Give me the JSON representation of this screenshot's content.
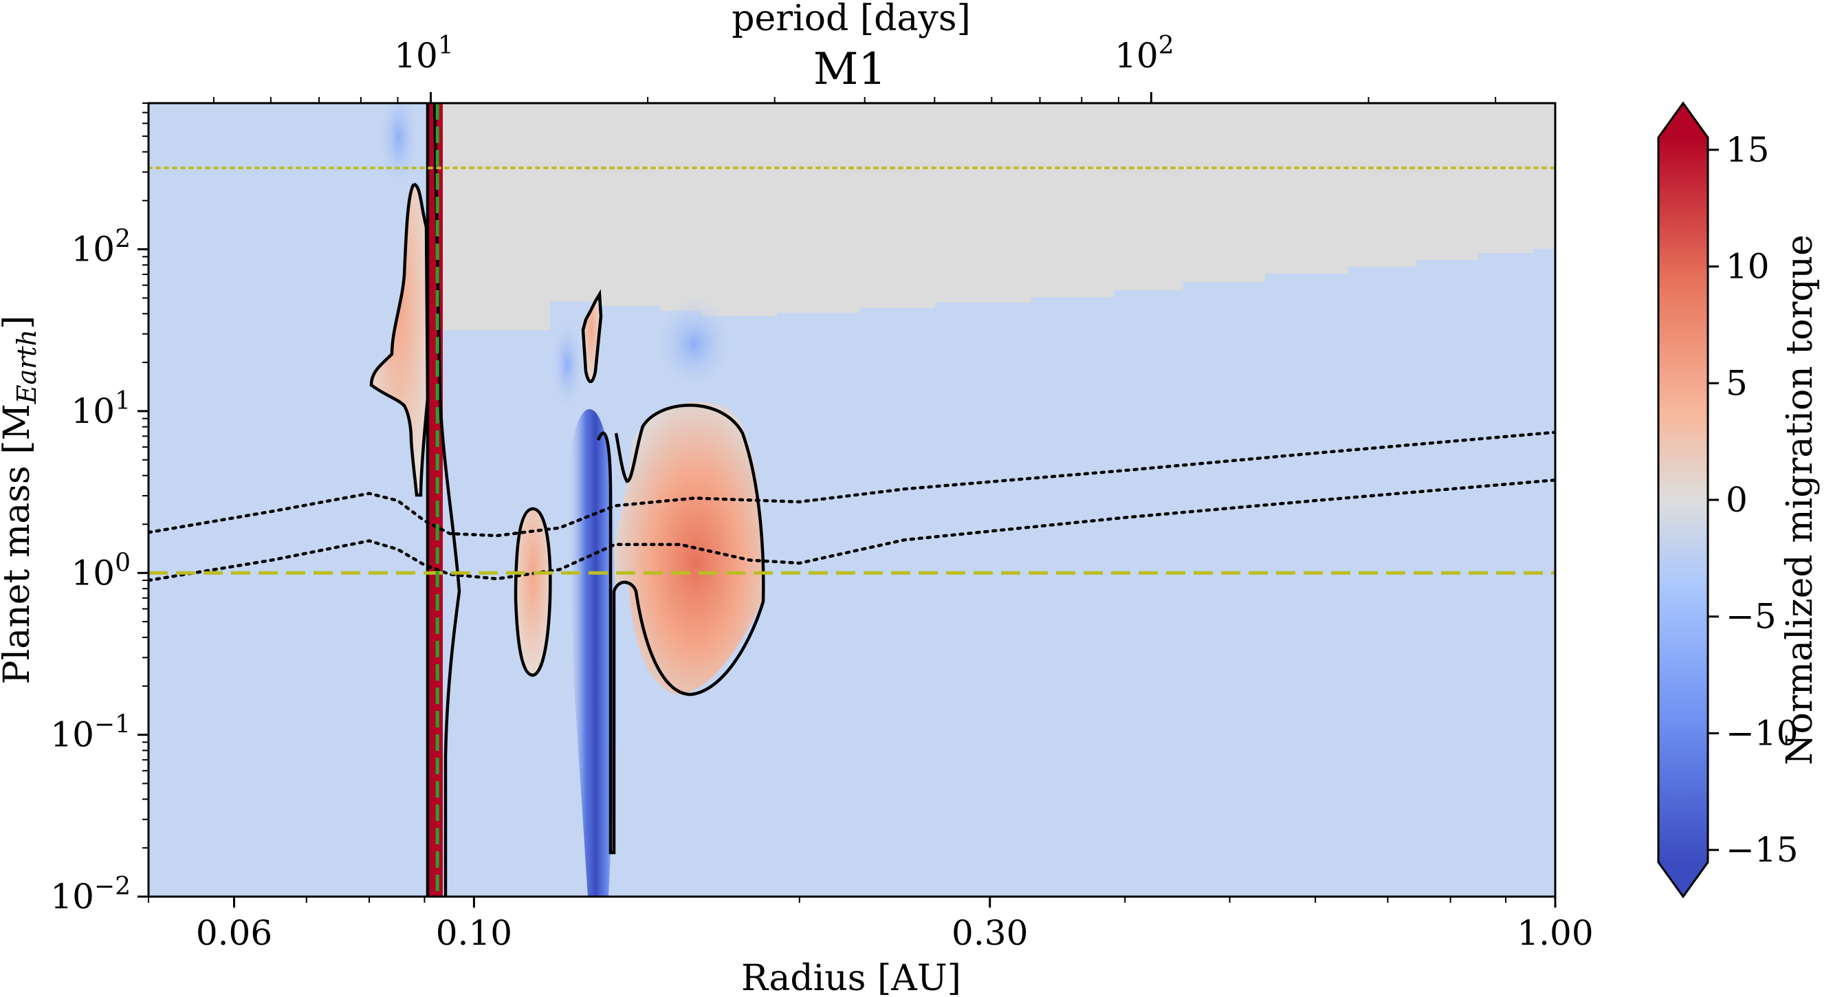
{
  "chart_data": {
    "type": "heatmap",
    "title": "M1",
    "xlabel": "Radius [AU]",
    "ylabel_main": "Planet mass [M",
    "ylabel_sub": "Earth",
    "ylabel_end": "]",
    "x2label": "period [days]",
    "colorbar_label": "Normalized migration torque",
    "xscale": "log",
    "yscale": "log",
    "xlim": [
      0.05,
      1.0
    ],
    "ylim": [
      0.01,
      800
    ],
    "x_ticks": [
      {
        "value": 0.06,
        "label": "0.06"
      },
      {
        "value": 0.1,
        "label": "0.10"
      },
      {
        "value": 0.3,
        "label": "0.30"
      },
      {
        "value": 1.0,
        "label": "1.00"
      }
    ],
    "y_ticks": [
      {
        "value": 0.01,
        "base": "10",
        "exp": "−2"
      },
      {
        "value": 0.1,
        "base": "10",
        "exp": "−1"
      },
      {
        "value": 1,
        "base": "10",
        "exp": "0"
      },
      {
        "value": 10,
        "base": "10",
        "exp": "1"
      },
      {
        "value": 100,
        "base": "10",
        "exp": "2"
      }
    ],
    "x2_ticks": [
      {
        "radius": 0.0912,
        "base": "10",
        "exp": "1"
      },
      {
        "radius": 0.423,
        "base": "10",
        "exp": "2"
      }
    ],
    "colorbar": {
      "range": [
        -17,
        17
      ],
      "ticks": [
        {
          "value": 15,
          "label": "15"
        },
        {
          "value": 10,
          "label": "10"
        },
        {
          "value": 5,
          "label": "5"
        },
        {
          "value": 0,
          "label": "0"
        },
        {
          "value": -5,
          "label": "−5"
        },
        {
          "value": -10,
          "label": "−10"
        },
        {
          "value": -15,
          "label": "−15"
        }
      ],
      "colors": [
        "#3b4cc0",
        "#6f92f3",
        "#aac7fd",
        "#dddddd",
        "#f7b89c",
        "#e7745b",
        "#b40426"
      ]
    },
    "reference_lines": [
      {
        "orientation": "horizontal",
        "value": 1.0,
        "style": "dashed",
        "color": "#bcbd22"
      },
      {
        "orientation": "horizontal",
        "value": 318,
        "style": "dotted",
        "color": "#bcbd22"
      },
      {
        "orientation": "vertical",
        "value": 0.0925,
        "style": "dashed",
        "color": "#2ca02c"
      }
    ],
    "dotted_curves": [
      {
        "name": "upper",
        "points": [
          [
            0.05,
            1.78
          ],
          [
            0.065,
            2.4
          ],
          [
            0.08,
            3.1
          ],
          [
            0.085,
            2.8
          ],
          [
            0.09,
            2.1
          ],
          [
            0.095,
            1.75
          ],
          [
            0.105,
            1.7
          ],
          [
            0.12,
            1.9
          ],
          [
            0.135,
            2.6
          ],
          [
            0.16,
            2.9
          ],
          [
            0.2,
            2.75
          ],
          [
            0.25,
            3.3
          ],
          [
            0.4,
            4.3
          ],
          [
            0.6,
            5.5
          ],
          [
            1.0,
            7.4
          ]
        ]
      },
      {
        "name": "lower",
        "points": [
          [
            0.05,
            0.9
          ],
          [
            0.065,
            1.2
          ],
          [
            0.08,
            1.58
          ],
          [
            0.085,
            1.4
          ],
          [
            0.09,
            1.12
          ],
          [
            0.095,
            0.98
          ],
          [
            0.105,
            0.92
          ],
          [
            0.12,
            1.05
          ],
          [
            0.135,
            1.5
          ],
          [
            0.155,
            1.5
          ],
          [
            0.18,
            1.2
          ],
          [
            0.2,
            1.15
          ],
          [
            0.25,
            1.6
          ],
          [
            0.4,
            2.2
          ],
          [
            0.6,
            2.8
          ],
          [
            1.0,
            3.75
          ]
        ]
      }
    ],
    "torque_regions": [
      {
        "name": "ice-line-spike",
        "peak_torque": 17,
        "sign": "positive"
      },
      {
        "name": "inner-lobe",
        "peak_torque": 6,
        "sign": "positive"
      },
      {
        "name": "small-lobe",
        "peak_torque": 4,
        "sign": "positive"
      },
      {
        "name": "upper-lobe",
        "peak_torque": 6,
        "sign": "positive"
      },
      {
        "name": "negative-trough",
        "peak_torque": -15,
        "sign": "negative"
      },
      {
        "name": "large-lobe",
        "peak_torque": 7,
        "sign": "positive"
      }
    ]
  }
}
